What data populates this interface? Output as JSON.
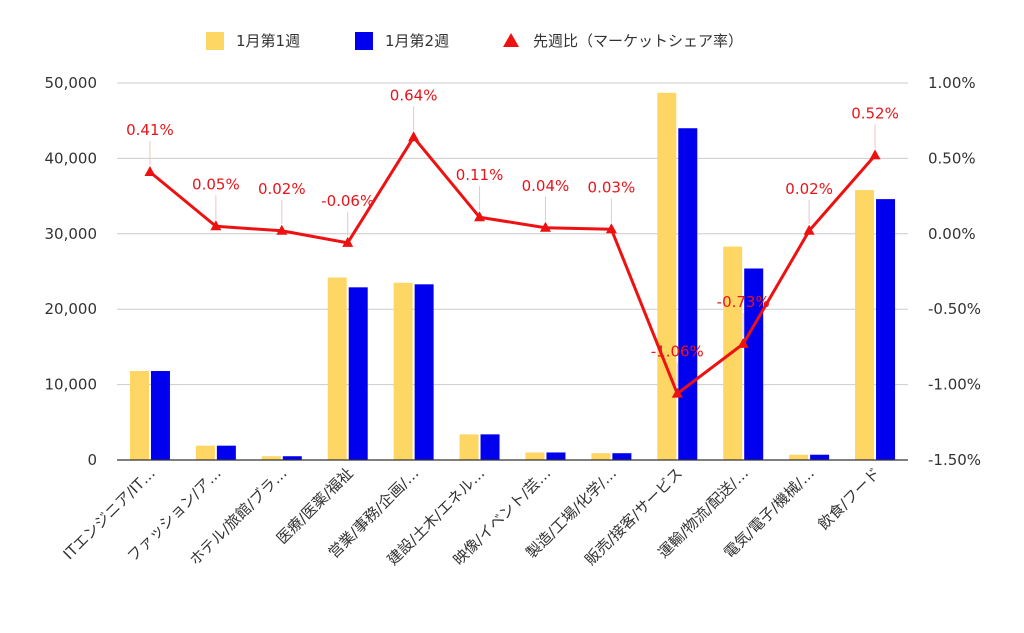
{
  "chart_data": {
    "type": "bar",
    "categories": [
      "ITエンジニア/IT…",
      "ファッション/ア…",
      "ホテル/旅館/ブラ…",
      "医療/医薬/福祉",
      "営業/事務/企画/…",
      "建設/土木/エネル…",
      "映像/イベント/芸…",
      "製造/工場/化学/…",
      "販売/接客/サービス",
      "運輸/物流/配送/…",
      "電気/電子/機械/…",
      "飲食/フード"
    ],
    "series": [
      {
        "name": "1月第1週",
        "type": "bar",
        "axis": "left",
        "color": "#fdd663",
        "values": [
          11800,
          1900,
          500,
          24200,
          23500,
          3400,
          1000,
          900,
          48700,
          28300,
          700,
          35800
        ]
      },
      {
        "name": "1月第2週",
        "type": "bar",
        "axis": "left",
        "color": "#0000ee",
        "values": [
          11800,
          1900,
          500,
          22900,
          23300,
          3400,
          1000,
          900,
          44000,
          25400,
          700,
          34600
        ]
      },
      {
        "name": "先週比（マーケットシェア率）",
        "type": "line",
        "axis": "right",
        "color": "#ee1111",
        "values": [
          0.41,
          0.05,
          0.02,
          -0.06,
          0.64,
          0.11,
          0.04,
          0.03,
          -1.06,
          -0.73,
          0.02,
          0.52
        ],
        "labels": [
          "0.41%",
          "0.05%",
          "0.02%",
          "-0.06%",
          "0.64%",
          "0.11%",
          "0.04%",
          "0.03%",
          "-1.06%",
          "-0.73%",
          "0.02%",
          "0.52%"
        ]
      }
    ],
    "left_axis": {
      "ylim": [
        0,
        50000
      ],
      "ticks": [
        0,
        10000,
        20000,
        30000,
        40000,
        50000
      ],
      "tick_labels": [
        "0",
        "10,000",
        "20,000",
        "30,000",
        "40,000",
        "50,000"
      ]
    },
    "right_axis": {
      "ylim": [
        -1.5,
        1.0
      ],
      "ticks": [
        -1.5,
        -1.0,
        -0.5,
        0.0,
        0.5,
        1.0
      ],
      "tick_labels": [
        "-1.50%",
        "-1.00%",
        "-0.50%",
        "0.00%",
        "0.50%",
        "1.00%"
      ]
    },
    "grid": "horizontal",
    "legend_position": "top"
  }
}
